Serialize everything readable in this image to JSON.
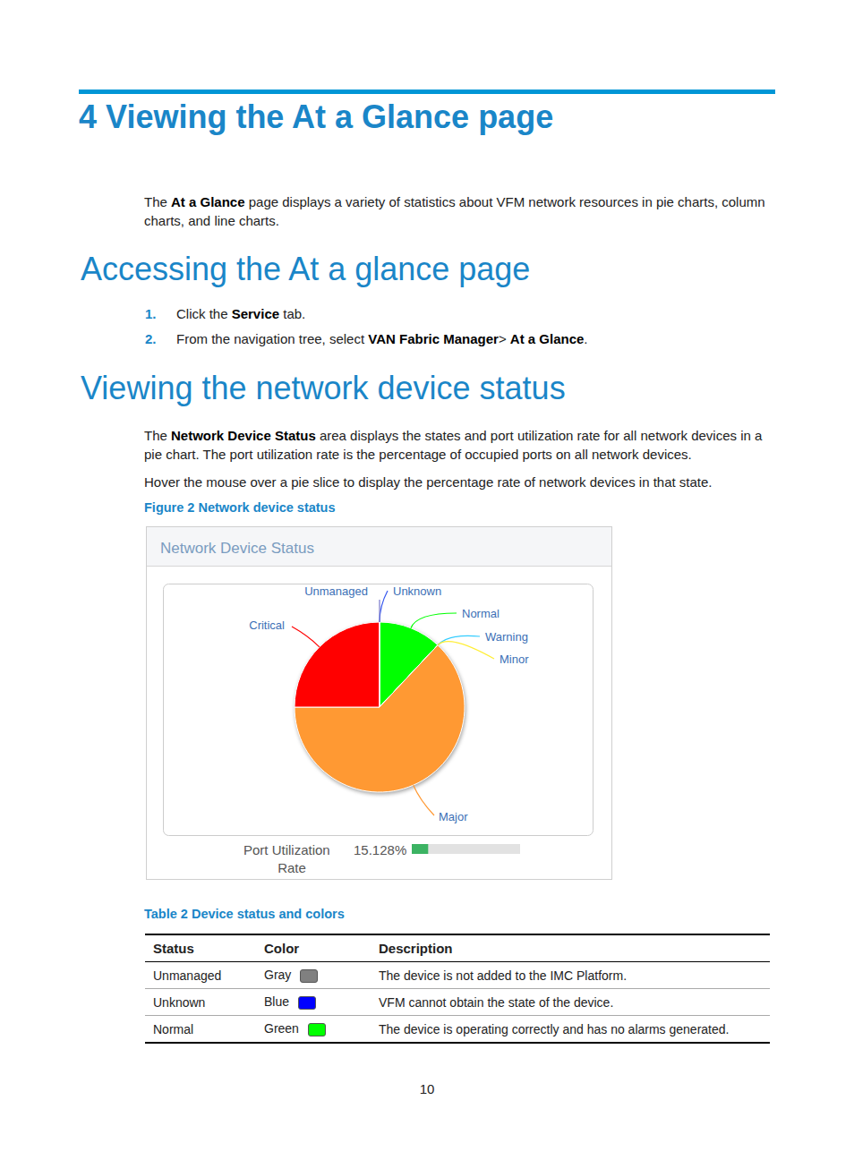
{
  "header": {
    "title": "4 Viewing the At a Glance page"
  },
  "intro": [
    {
      "text": "The "
    },
    {
      "text": "At a Glance",
      "bold": true
    },
    {
      "text": " page displays a variety of statistics about VFM network resources in pie charts, column charts, and line charts."
    }
  ],
  "sections": [
    {
      "heading": "Accessing the At a glance page",
      "steps": [
        {
          "number": "1.",
          "segments": [
            {
              "text": "Click the "
            },
            {
              "text": "Service",
              "bold": true
            },
            {
              "text": " tab."
            }
          ]
        },
        {
          "number": "2.",
          "segments": [
            {
              "text": "From the navigation tree, select "
            },
            {
              "text": "VAN Fabric Manager",
              "bold": true
            },
            {
              "text": "> "
            },
            {
              "text": "At a Glance",
              "bold": true
            },
            {
              "text": "."
            }
          ]
        }
      ]
    },
    {
      "heading": "Viewing the network device status",
      "paragraphs": [
        [
          {
            "text": "The "
          },
          {
            "text": "Network Device Status",
            "bold": true
          },
          {
            "text": " area displays the states and port utilization rate for all network devices in a pie chart. The port utilization rate is the percentage of occupied ports on all network devices."
          }
        ],
        [
          {
            "text": "Hover the mouse over a pie slice to display the percentage rate of network devices in that state."
          }
        ]
      ]
    }
  ],
  "figure": {
    "caption": "Figure 2 Network device status",
    "port_utilization": {
      "label_lines": [
        "Port Utilization",
        "Rate"
      ],
      "value": 15.128,
      "value_text": "15.128%",
      "range": [
        0,
        100
      ]
    }
  },
  "chart_data": {
    "type": "pie",
    "title": "Network Device Status",
    "categories": [
      "Unknown",
      "Normal",
      "Warning",
      "Minor",
      "Major",
      "Critical",
      "Unmanaged"
    ],
    "values": [
      0,
      12,
      0,
      0,
      63,
      25,
      0
    ],
    "colors": [
      "#3355ee",
      "#00ff00",
      "#33ccff",
      "#ffee33",
      "#ff9933",
      "#ff0000",
      "#7777cc"
    ]
  },
  "table": {
    "caption": "Table 2 Device status and colors",
    "columns": [
      "Status",
      "Color",
      "Description"
    ],
    "rows": [
      [
        "Unmanaged",
        "Gray",
        "The device is not added to the IMC Platform."
      ],
      [
        "Unknown",
        "Blue",
        "VFM cannot obtain the state of the device."
      ],
      [
        "Normal",
        "Green",
        "The device is operating correctly and has no alarms generated."
      ]
    ],
    "swatches": [
      "#808080",
      "#0000ff",
      "#00ff00"
    ]
  },
  "footer": {
    "page_number": "10"
  }
}
